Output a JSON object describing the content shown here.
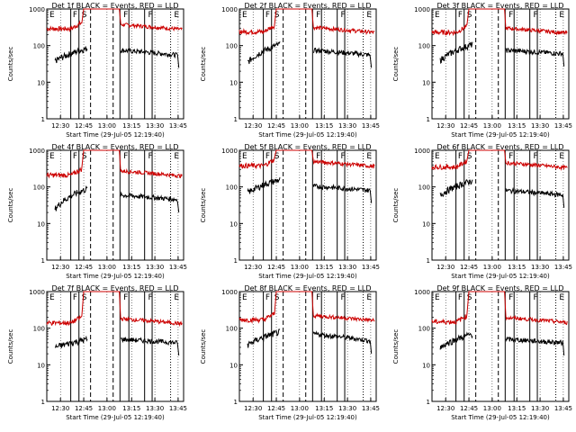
{
  "chart_data": {
    "type": "line",
    "panels": [
      {
        "title": "Det 1f BLACK = Events, RED = LLD",
        "ylabel": "Counts/sec",
        "xlabel": "Start Time (29-Jul-05 12:19:40)",
        "red_level": 290,
        "black_pre": [
          38,
          85
        ],
        "black_post": [
          75,
          55
        ]
      },
      {
        "title": "Det 2f BLACK = Events, RED = LLD",
        "ylabel": "Counts/sec",
        "xlabel": "Start Time (29-Jul-05 12:19:40)",
        "red_level": 240,
        "black_pre": [
          35,
          110
        ],
        "black_post": [
          75,
          55
        ]
      },
      {
        "title": "Det 3f BLACK = Events, RED = LLD",
        "ylabel": "Counts/sec",
        "xlabel": "Start Time (29-Jul-05 12:19:40)",
        "red_level": 230,
        "black_pre": [
          40,
          110
        ],
        "black_post": [
          75,
          60
        ]
      },
      {
        "title": "Det 4f BLACK = Events, RED = LLD",
        "ylabel": "Counts/sec",
        "xlabel": "Start Time (29-Jul-05 12:19:40)",
        "red_level": 210,
        "black_pre": [
          25,
          90
        ],
        "black_post": [
          60,
          45
        ]
      },
      {
        "title": "Det 5f BLACK = Events, RED = LLD",
        "ylabel": "Counts/sec",
        "xlabel": "Start Time (29-Jul-05 12:19:40)",
        "red_level": 380,
        "black_pre": [
          70,
          160
        ],
        "black_post": [
          105,
          80
        ]
      },
      {
        "title": "Det 6f BLACK = Events, RED = LLD",
        "ylabel": "Counts/sec",
        "xlabel": "Start Time (29-Jul-05 12:19:40)",
        "red_level": 350,
        "black_pre": [
          60,
          150
        ],
        "black_post": [
          80,
          60
        ]
      },
      {
        "title": "Det 7f BLACK = Events, RED = LLD",
        "ylabel": "Counts/sec",
        "xlabel": "Start Time (29-Jul-05 12:19:40)",
        "red_level": 140,
        "black_pre": [
          30,
          50
        ],
        "black_post": [
          50,
          40
        ]
      },
      {
        "title": "Det 8f BLACK = Events, RED = LLD",
        "ylabel": "Counts/sec",
        "xlabel": "Start Time (29-Jul-05 12:19:40)",
        "red_level": 170,
        "black_pre": [
          35,
          80
        ],
        "black_post": [
          70,
          45
        ]
      },
      {
        "title": "Det 9f BLACK = Events, RED = LLD",
        "ylabel": "Counts/sec",
        "xlabel": "Start Time (29-Jul-05 12:19:40)",
        "red_level": 150,
        "black_pre": [
          30,
          70
        ],
        "black_post": [
          50,
          40
        ]
      }
    ],
    "xticks": [
      "12:30",
      "12:45",
      "13:00",
      "13:15",
      "13:30",
      "13:45"
    ],
    "yticks": [
      "1",
      "10",
      "100",
      "1000"
    ],
    "ylim": [
      1,
      1000
    ],
    "yscale": "log",
    "series": [
      {
        "color": "#cc0000"
      },
      {
        "color": "#000000"
      }
    ],
    "markers": [
      "E",
      "F",
      "S",
      "F",
      "F",
      "E"
    ],
    "grid": true
  }
}
